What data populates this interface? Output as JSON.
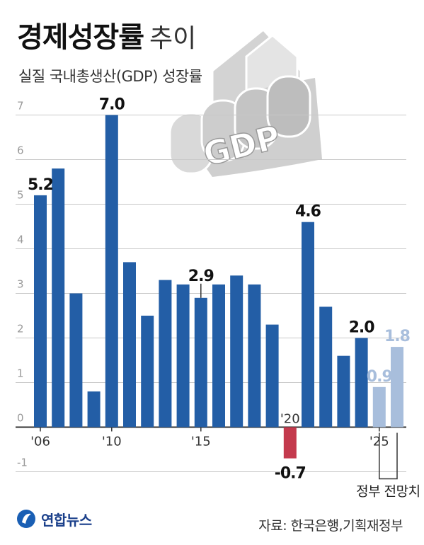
{
  "title": "경제성장률",
  "title_suffix": "추이",
  "subtitle": "실질 국내총생산(GDP) 성장률",
  "graphic_text": "GDP",
  "source": "자료: 한국은행,기획재정부",
  "logo_text": "연합뉴스",
  "projection_label": "정부 전망치",
  "colors": {
    "actual": "#235ea6",
    "negative": "#c43a4d",
    "projection": "#a8bedc",
    "grid": "#c8c8c8"
  },
  "chart_data": {
    "type": "bar",
    "ylim": [
      -1,
      7
    ],
    "yticks": [
      "-1",
      "0",
      "1",
      "2",
      "3",
      "4",
      "5",
      "6",
      "7"
    ],
    "categories": [
      "2006",
      "2007",
      "2008",
      "2009",
      "2010",
      "2011",
      "2012",
      "2013",
      "2014",
      "2015",
      "2016",
      "2017",
      "2018",
      "2019",
      "2020",
      "2021",
      "2022",
      "2023",
      "2024",
      "2025",
      "2026"
    ],
    "x_tick_labels": [
      {
        "index": 0,
        "text": "'06"
      },
      {
        "index": 4,
        "text": "'10"
      },
      {
        "index": 9,
        "text": "'15"
      },
      {
        "index": 14,
        "text": "'20"
      },
      {
        "index": 19,
        "text": "'25"
      }
    ],
    "values": [
      5.2,
      5.8,
      3.0,
      0.8,
      7.0,
      3.7,
      2.5,
      3.3,
      3.2,
      2.9,
      3.2,
      3.4,
      3.2,
      2.3,
      -0.7,
      4.6,
      2.7,
      1.6,
      2.0,
      0.9,
      1.8
    ],
    "kinds": [
      "actual",
      "actual",
      "actual",
      "actual",
      "actual",
      "actual",
      "actual",
      "actual",
      "actual",
      "actual",
      "actual",
      "actual",
      "actual",
      "actual",
      "negative",
      "actual",
      "actual",
      "actual",
      "actual",
      "projection",
      "projection"
    ],
    "data_labels": [
      {
        "index": 0,
        "text": "5.2"
      },
      {
        "index": 4,
        "text": "7.0"
      },
      {
        "index": 9,
        "text": "2.9"
      },
      {
        "index": 14,
        "text": "-0.7"
      },
      {
        "index": 15,
        "text": "4.6"
      },
      {
        "index": 18,
        "text": "2.0"
      },
      {
        "index": 19,
        "text": "0.9"
      },
      {
        "index": 20,
        "text": "1.8"
      }
    ]
  }
}
